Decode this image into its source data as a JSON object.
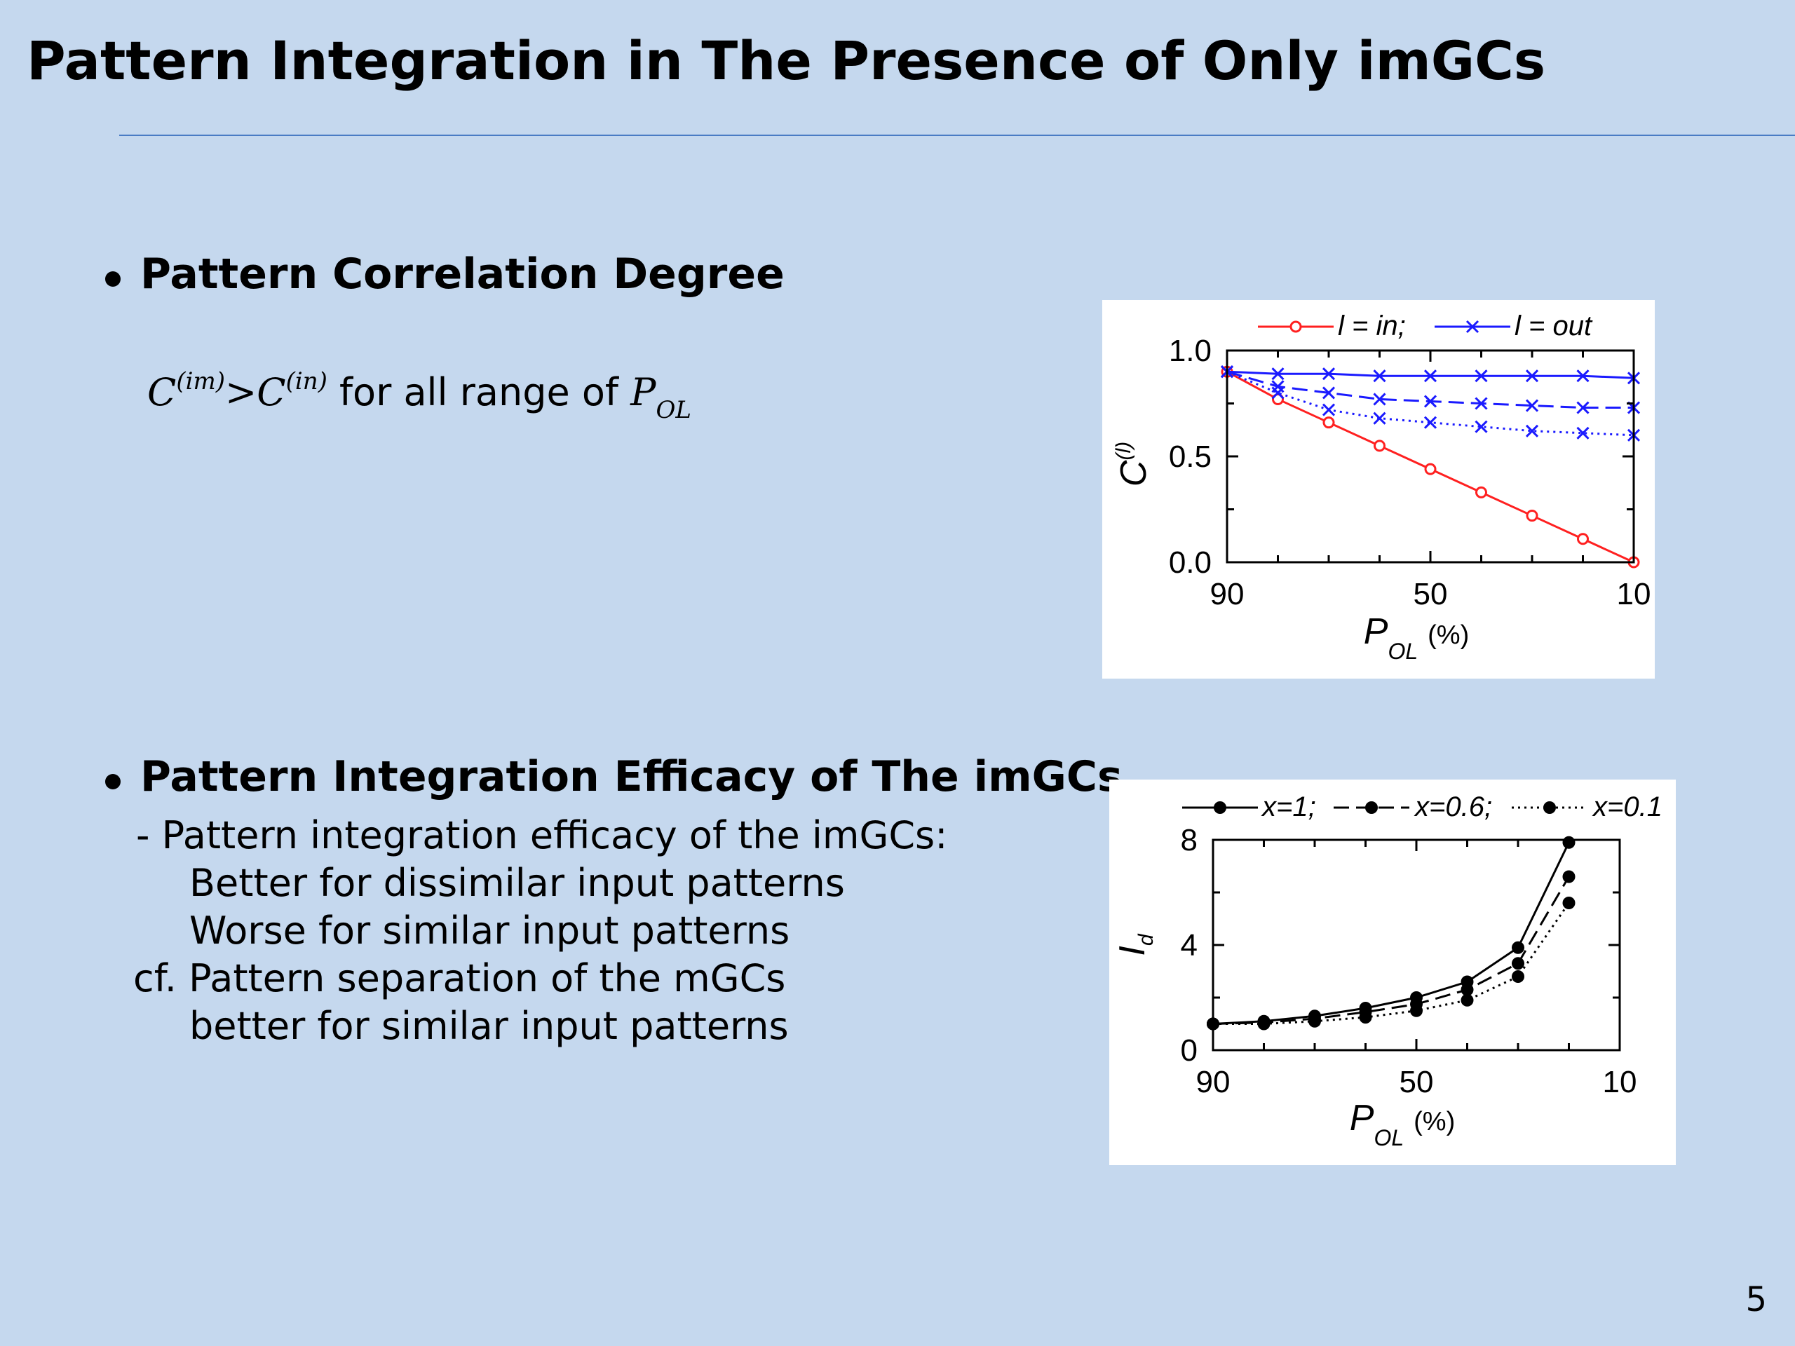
{
  "slide": {
    "title": "Pattern Integration in The Presence of Only imGCs",
    "page_number": "5",
    "colors": {
      "background": "#c5d8ee",
      "rule": "#4a7cc4"
    }
  },
  "section1": {
    "heading": "Pattern Correlation Degree",
    "statement": {
      "lhs": "C",
      "lhs_sup": "(im)",
      "op": ">",
      "rhs": "C",
      "rhs_sup": "(in)",
      "text": " for all range of ",
      "var": "P",
      "var_sub": "OL"
    }
  },
  "section2": {
    "heading": "Pattern Integration Efficacy of The imGCs",
    "lines": [
      "- Pattern integration efficacy of the imGCs:",
      "Better for dissimilar input patterns",
      "Worse for similar input patterns",
      "cf. Pattern separation of the mGCs",
      "better for similar input patterns"
    ]
  },
  "chart_data": [
    {
      "type": "line",
      "xlabel": "P",
      "xlabel_sub": "OL",
      "xlabel_unit": "(%)",
      "ylabel": "C",
      "ylabel_sup": "(l)",
      "xlim": [
        90,
        10
      ],
      "ylim": [
        0,
        1
      ],
      "xticks": [
        "90",
        "50",
        "10"
      ],
      "yticks": [
        "0.0",
        "0.5",
        "1.0"
      ],
      "x": [
        90,
        80,
        70,
        60,
        50,
        40,
        30,
        20,
        10
      ],
      "legend": [
        {
          "label": "l = in;",
          "color": "#ff2020",
          "marker": "circle"
        },
        {
          "label": "l = out",
          "color": "#1a1aff",
          "marker": "x"
        }
      ],
      "series": [
        {
          "group": "in",
          "color": "#ff2020",
          "marker": "circle",
          "dash": "solid",
          "values": [
            0.9,
            0.77,
            0.66,
            0.55,
            0.44,
            0.33,
            0.22,
            0.11,
            0.0
          ]
        },
        {
          "group": "out",
          "color": "#1a1aff",
          "marker": "x",
          "dash": "solid",
          "values": [
            0.9,
            0.89,
            0.89,
            0.88,
            0.88,
            0.88,
            0.88,
            0.88,
            0.87
          ]
        },
        {
          "group": "out",
          "color": "#1a1aff",
          "marker": "x",
          "dash": "dashed",
          "values": [
            0.9,
            0.83,
            0.8,
            0.77,
            0.76,
            0.75,
            0.74,
            0.73,
            0.73
          ]
        },
        {
          "group": "out",
          "color": "#1a1aff",
          "marker": "x",
          "dash": "dotted",
          "values": [
            0.9,
            0.8,
            0.72,
            0.68,
            0.66,
            0.64,
            0.62,
            0.61,
            0.6
          ]
        }
      ]
    },
    {
      "type": "line",
      "xlabel": "P",
      "xlabel_sub": "OL",
      "xlabel_unit": "(%)",
      "ylabel": "I",
      "ylabel_sub": "d",
      "xlim": [
        90,
        10
      ],
      "ylim": [
        0,
        8
      ],
      "xticks": [
        "90",
        "50",
        "10"
      ],
      "yticks": [
        "0",
        "4",
        "8"
      ],
      "legend": [
        {
          "label": "x=1;",
          "dash": "solid"
        },
        {
          "label": "x=0.6;",
          "dash": "dashed"
        },
        {
          "label": "x=0.1",
          "dash": "dotted"
        }
      ],
      "series": [
        {
          "name": "x=1",
          "dash": "solid",
          "x": [
            90,
            80,
            70,
            60,
            50,
            40,
            30,
            20
          ],
          "values": [
            1.0,
            1.1,
            1.3,
            1.6,
            2.0,
            2.6,
            3.9,
            7.9
          ]
        },
        {
          "name": "x=0.6",
          "dash": "dashed",
          "x": [
            90,
            80,
            70,
            60,
            50,
            40,
            30,
            20
          ],
          "values": [
            1.0,
            1.05,
            1.2,
            1.45,
            1.75,
            2.3,
            3.3,
            6.6
          ]
        },
        {
          "name": "x=0.1",
          "dash": "dotted",
          "x": [
            90,
            80,
            70,
            60,
            50,
            40,
            30,
            20
          ],
          "values": [
            1.0,
            1.0,
            1.1,
            1.25,
            1.5,
            1.9,
            2.8,
            5.6
          ]
        }
      ]
    }
  ]
}
